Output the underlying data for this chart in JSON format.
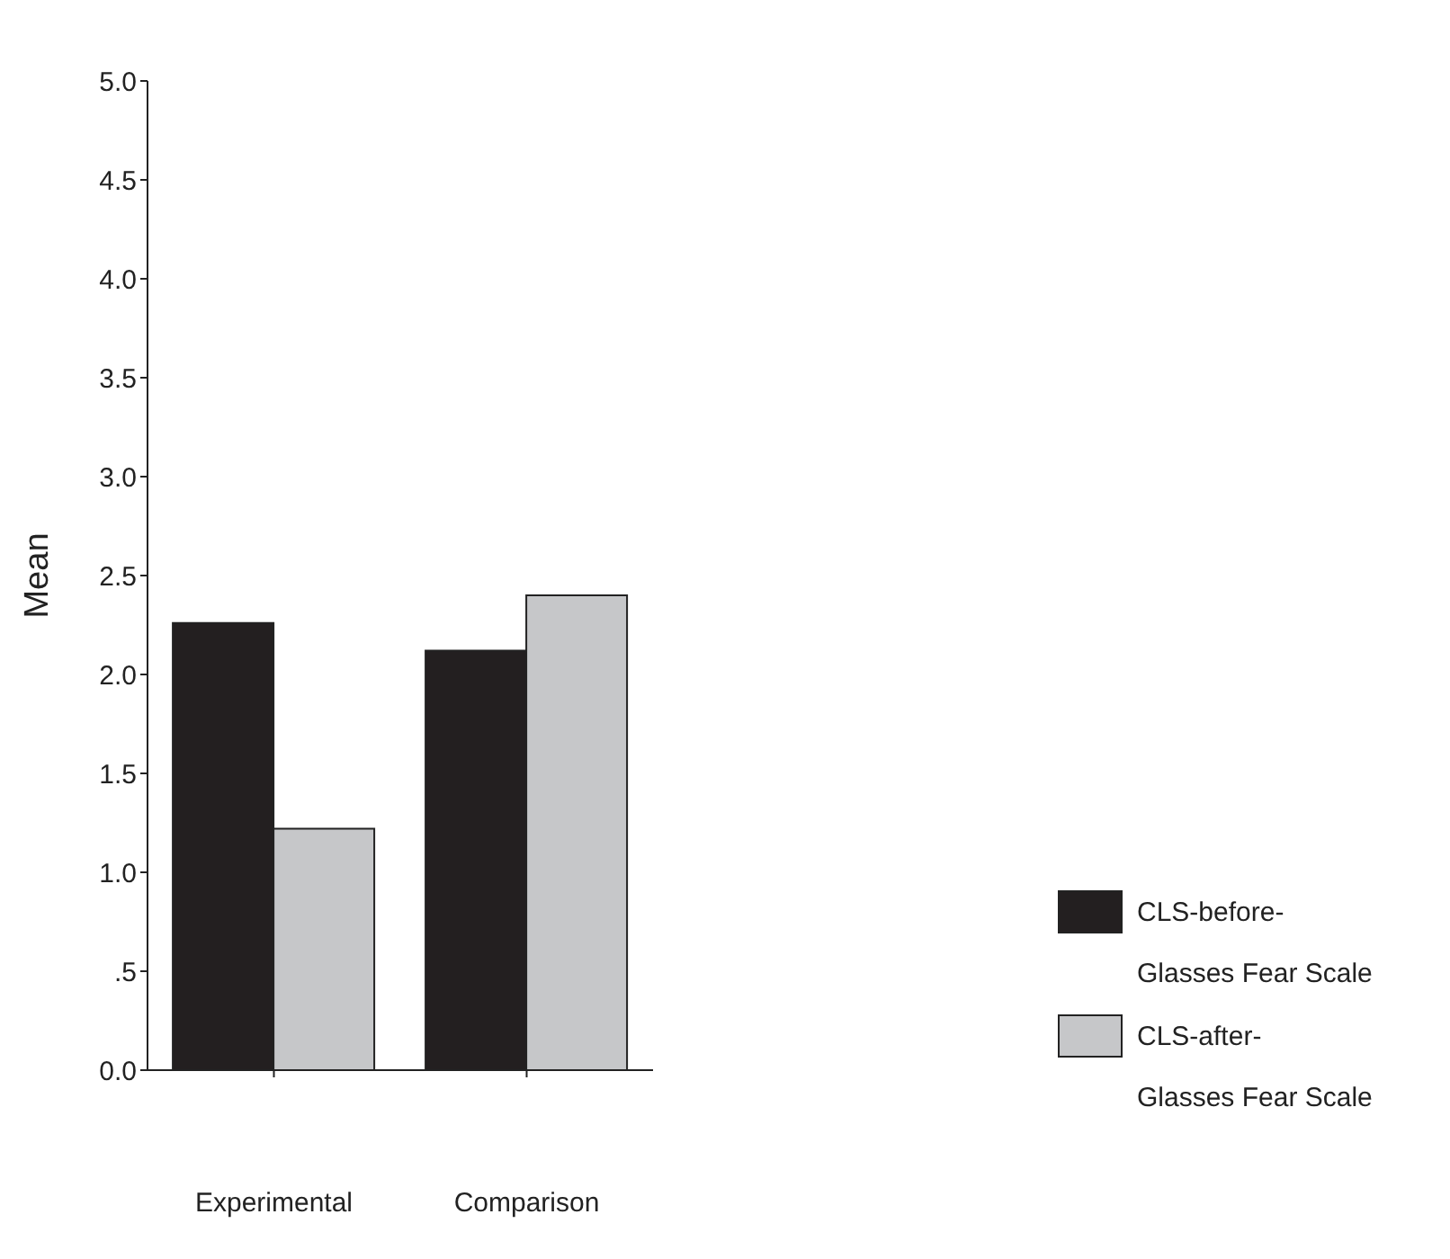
{
  "chart_data": {
    "type": "bar",
    "ylabel": "Mean",
    "categories": [
      "Experimental",
      "Comparison"
    ],
    "series": [
      {
        "name": "CLS-before- Glasses Fear Scale",
        "color": "#231f20",
        "values": [
          2.26,
          2.12
        ]
      },
      {
        "name": "CLS-after- Glasses Fear Scale",
        "color": "#c6c7c9",
        "values": [
          1.22,
          2.4
        ]
      }
    ],
    "ylim": [
      0,
      5
    ],
    "yticks": [
      {
        "value": 0,
        "label": "0.0"
      },
      {
        "value": 0.5,
        "label": ".5"
      },
      {
        "value": 1,
        "label": "1.0"
      },
      {
        "value": 1.5,
        "label": "1.5"
      },
      {
        "value": 2,
        "label": "2.0"
      },
      {
        "value": 2.5,
        "label": "2.5"
      },
      {
        "value": 3,
        "label": "3.0"
      },
      {
        "value": 3.5,
        "label": "3.5"
      },
      {
        "value": 4,
        "label": "4.0"
      },
      {
        "value": 4.5,
        "label": "4.5"
      },
      {
        "value": 5,
        "label": "5.0"
      }
    ],
    "grid": false,
    "legend": "bottom right"
  }
}
